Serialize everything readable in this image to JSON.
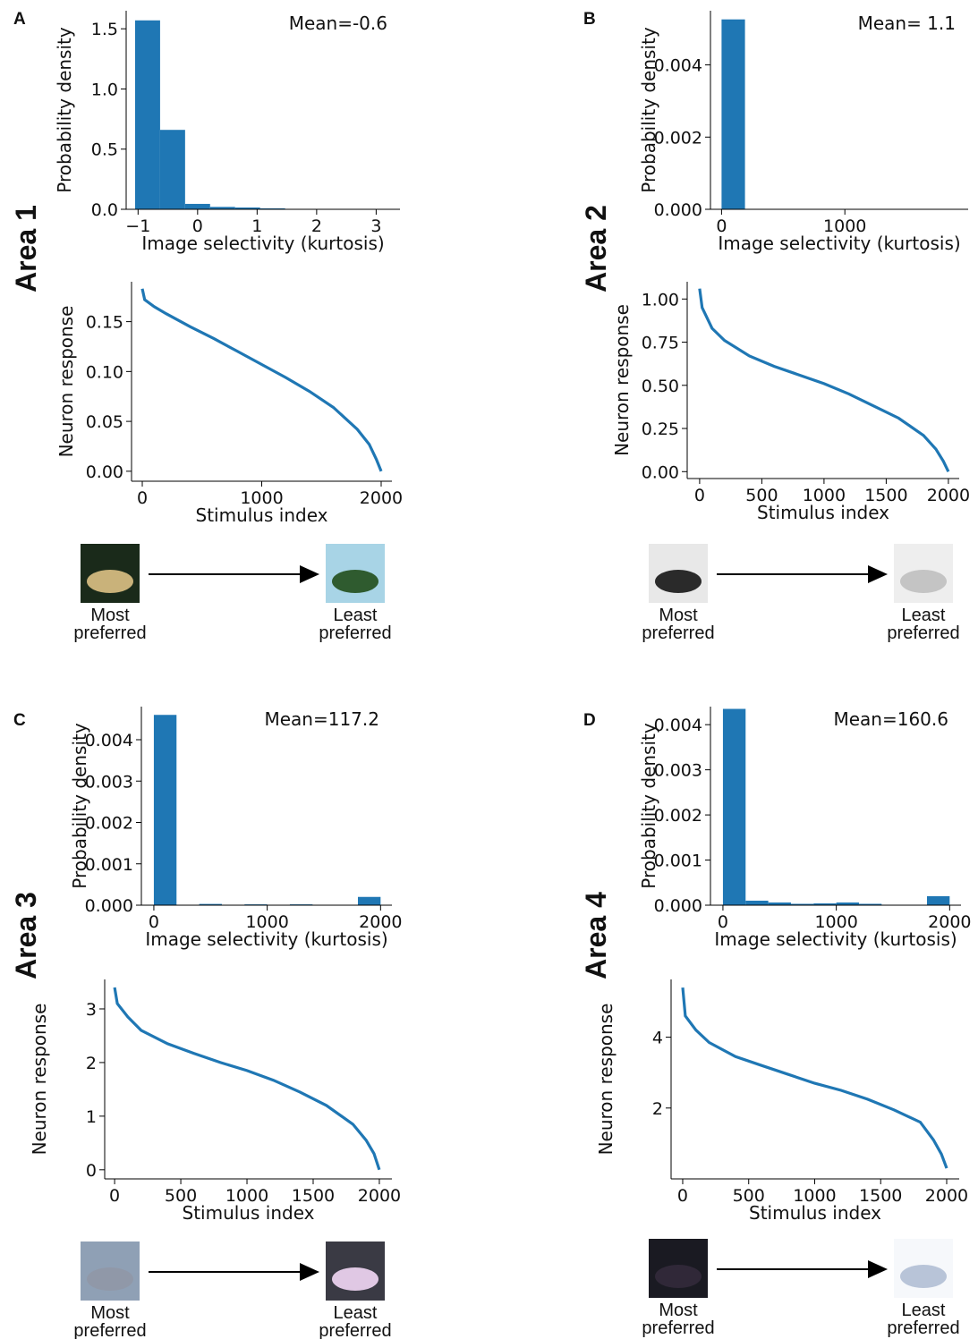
{
  "panels": [
    {
      "letter": "A",
      "area": "Area 1",
      "most": [
        "Most",
        "preferred"
      ],
      "least": [
        "Least",
        "preferred"
      ]
    },
    {
      "letter": "B",
      "area": "Area 2",
      "most": [
        "Most",
        "preferred"
      ],
      "least": [
        "Least",
        "preferred"
      ]
    },
    {
      "letter": "C",
      "area": "Area 3",
      "most": [
        "Most",
        "preferred"
      ],
      "least": [
        "Least",
        "preferred"
      ]
    },
    {
      "letter": "D",
      "area": "Area 4",
      "most": [
        "Most",
        "preferred"
      ],
      "least": [
        "Least",
        "preferred"
      ]
    }
  ],
  "chart_data": [
    {
      "type": "histogram",
      "annotation": "Mean=-0.6",
      "xlabel": "Image selectivity (kurtosis)",
      "ylabel": "Probability density",
      "color": "#1f77b4",
      "bins": [
        -1.05,
        -0.63,
        -0.21,
        0.21,
        0.63,
        1.05,
        1.47,
        1.89,
        2.31,
        2.73,
        3.15
      ],
      "values": [
        1.57,
        0.66,
        0.045,
        0.02,
        0.015,
        0.008,
        0.003,
        0.002,
        0.001,
        0.001
      ],
      "xlim": [
        -1.2,
        3.4
      ],
      "ylim": [
        0,
        1.65
      ],
      "xticks": [
        {
          "value": -1,
          "label": "−1"
        },
        0,
        1,
        2,
        3
      ],
      "yticks": [
        {
          "value": 0,
          "label": "0.0"
        },
        {
          "value": 0.5,
          "label": "0.5"
        },
        {
          "value": 1,
          "label": "1.0"
        },
        {
          "value": 1.5,
          "label": "1.5"
        }
      ]
    },
    {
      "type": "line",
      "xlabel": "Stimulus index",
      "ylabel": "Neuron response",
      "color": "#1f77b4",
      "x": [
        0,
        20,
        100,
        200,
        400,
        600,
        800,
        1000,
        1200,
        1400,
        1600,
        1800,
        1900,
        1960,
        2000
      ],
      "values": [
        0.183,
        0.172,
        0.165,
        0.158,
        0.145,
        0.133,
        0.12,
        0.107,
        0.094,
        0.08,
        0.064,
        0.042,
        0.027,
        0.012,
        0
      ],
      "xlim": [
        -90,
        2090
      ],
      "ylim": [
        -0.01,
        0.19
      ],
      "xticks": [
        0,
        1000,
        2000
      ],
      "yticks": [
        {
          "value": 0,
          "label": "0.00"
        },
        {
          "value": 0.05,
          "label": "0.05"
        },
        {
          "value": 0.1,
          "label": "0.10"
        },
        {
          "value": 0.15,
          "label": "0.15"
        }
      ]
    },
    {
      "type": "histogram",
      "annotation": "Mean= 1.1",
      "xlabel": "Image selectivity (kurtosis)",
      "ylabel": "Probability density",
      "color": "#1f77b4",
      "bins": [
        0,
        190,
        380,
        570,
        760,
        950,
        1140,
        1330,
        1520,
        1710,
        1900
      ],
      "values": [
        0.00526,
        0,
        0,
        0,
        0,
        0,
        0,
        0,
        0,
        0
      ],
      "xlim": [
        -90,
        2000
      ],
      "ylim": [
        0,
        0.0055
      ],
      "xticks": [
        0,
        1000
      ],
      "yticks": [
        {
          "value": 0,
          "label": "0.000"
        },
        {
          "value": 0.002,
          "label": "0.002"
        },
        {
          "value": 0.004,
          "label": "0.004"
        }
      ]
    },
    {
      "type": "line",
      "xlabel": "Stimulus index",
      "ylabel": "Neuron response",
      "color": "#1f77b4",
      "x": [
        0,
        20,
        100,
        200,
        400,
        600,
        800,
        1000,
        1200,
        1400,
        1600,
        1800,
        1900,
        1960,
        2000
      ],
      "values": [
        1.06,
        0.95,
        0.83,
        0.76,
        0.67,
        0.61,
        0.56,
        0.51,
        0.45,
        0.38,
        0.31,
        0.21,
        0.13,
        0.06,
        0
      ],
      "xlim": [
        -100,
        2087
      ],
      "ylim": [
        -0.04,
        1.1
      ],
      "xticks": [
        0,
        500,
        1000,
        1500,
        2000
      ],
      "yticks": [
        {
          "value": 0,
          "label": "0.00"
        },
        {
          "value": 0.25,
          "label": "0.25"
        },
        {
          "value": 0.5,
          "label": "0.50"
        },
        {
          "value": 0.75,
          "label": "0.75"
        },
        {
          "value": 1,
          "label": "1.00"
        }
      ]
    },
    {
      "type": "histogram",
      "annotation": "Mean=117.2",
      "xlabel": "Image selectivity (kurtosis)",
      "ylabel": "Probability density",
      "color": "#1f77b4",
      "bins": [
        0,
        200,
        400,
        600,
        800,
        1000,
        1200,
        1400,
        1600,
        1800,
        2000
      ],
      "values": [
        0.0046,
        0,
        3e-05,
        0,
        2e-05,
        0,
        2e-05,
        0,
        1e-05,
        0.0002
      ],
      "xlim": [
        -110,
        2100
      ],
      "ylim": [
        0,
        0.0048
      ],
      "xticks": [
        0,
        1000,
        2000
      ],
      "yticks": [
        {
          "value": 0,
          "label": "0.000"
        },
        {
          "value": 0.001,
          "label": "0.001"
        },
        {
          "value": 0.002,
          "label": "0.002"
        },
        {
          "value": 0.003,
          "label": "0.003"
        },
        {
          "value": 0.004,
          "label": "0.004"
        }
      ]
    },
    {
      "type": "line",
      "xlabel": "Stimulus index",
      "ylabel": "Neuron response",
      "color": "#1f77b4",
      "x": [
        0,
        20,
        100,
        200,
        400,
        600,
        800,
        1000,
        1200,
        1400,
        1600,
        1800,
        1900,
        1960,
        2000
      ],
      "values": [
        3.4,
        3.1,
        2.85,
        2.6,
        2.35,
        2.17,
        2.0,
        1.85,
        1.67,
        1.45,
        1.2,
        0.85,
        0.55,
        0.3,
        0
      ],
      "xlim": [
        -75,
        2095
      ],
      "ylim": [
        -0.17,
        3.55
      ],
      "xticks": [
        0,
        500,
        1000,
        1500,
        2000
      ],
      "yticks": [
        0,
        1,
        2,
        3
      ]
    },
    {
      "type": "histogram",
      "annotation": "Mean=160.6",
      "xlabel": "Image selectivity (kurtosis)",
      "ylabel": "Probability density",
      "color": "#1f77b4",
      "bins": [
        0,
        200,
        400,
        600,
        800,
        1000,
        1200,
        1400,
        1600,
        1800,
        2000
      ],
      "values": [
        0.00435,
        0.0001,
        6e-05,
        3e-05,
        4e-05,
        6e-05,
        3e-05,
        1e-05,
        1e-05,
        0.0002
      ],
      "xlim": [
        -110,
        2100
      ],
      "ylim": [
        0,
        0.0044
      ],
      "xticks": [
        0,
        1000,
        2000
      ],
      "yticks": [
        {
          "value": 0,
          "label": "0.000"
        },
        {
          "value": 0.001,
          "label": "0.001"
        },
        {
          "value": 0.002,
          "label": "0.002"
        },
        {
          "value": 0.003,
          "label": "0.003"
        },
        {
          "value": 0.004,
          "label": "0.004"
        }
      ]
    },
    {
      "type": "line",
      "xlabel": "Stimulus index",
      "ylabel": "Neuron response",
      "color": "#1f77b4",
      "x": [
        0,
        20,
        100,
        200,
        400,
        600,
        800,
        1000,
        1200,
        1400,
        1600,
        1800,
        1900,
        1960,
        2000
      ],
      "values": [
        5.4,
        4.6,
        4.2,
        3.85,
        3.45,
        3.2,
        2.95,
        2.7,
        2.5,
        2.25,
        1.95,
        1.6,
        1.1,
        0.7,
        0.3
      ],
      "xlim": [
        -88,
        2095
      ],
      "ylim": [
        0,
        5.63
      ],
      "xticks": [
        0,
        500,
        1000,
        1500,
        2000
      ],
      "yticks": [
        2,
        4
      ]
    }
  ]
}
